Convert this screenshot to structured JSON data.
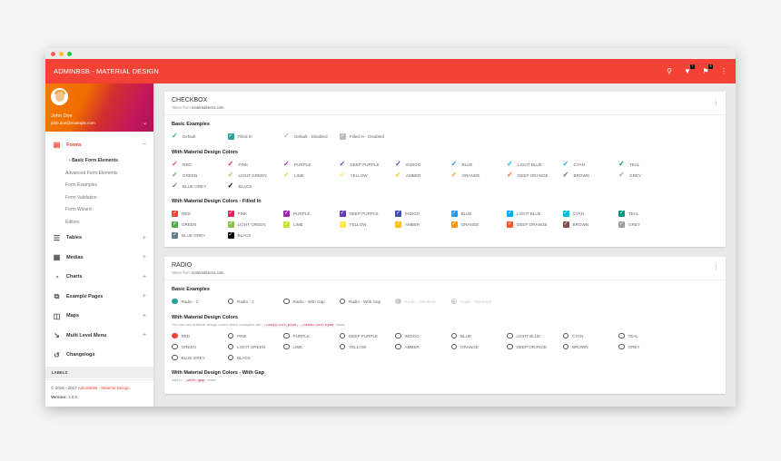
{
  "window": {
    "dots": [
      "#ff5f56",
      "#ffbd2e",
      "#27c93f"
    ]
  },
  "topbar": {
    "title": "ADMINBSB - MATERIAL DESIGN",
    "notif_badge": "7",
    "flag_badge": "9"
  },
  "user": {
    "name": "John Doe",
    "email": "john.doe@example.com"
  },
  "sidebar": {
    "forms": {
      "label": "Forms",
      "toggle": "−"
    },
    "sub_items": [
      {
        "label": "Basic Form Elements",
        "active": true
      },
      {
        "label": "Advanced Form Elements"
      },
      {
        "label": "Form Examples"
      },
      {
        "label": "Form Validation"
      },
      {
        "label": "Form Wizard"
      },
      {
        "label": "Editors"
      }
    ],
    "items": [
      {
        "label": "Tables",
        "toggle": "+"
      },
      {
        "label": "Medias",
        "toggle": "+"
      },
      {
        "label": "Charts",
        "toggle": "+"
      },
      {
        "label": "Example Pages",
        "toggle": "+"
      },
      {
        "label": "Maps",
        "toggle": "+"
      },
      {
        "label": "Multi Level Menu",
        "toggle": "+"
      },
      {
        "label": "Changelogs",
        "toggle": ""
      }
    ],
    "labels_header": "LABELS",
    "footer": {
      "copy": "© 2016 - 2017 ",
      "brand": "AdminBSB - Material Design.",
      "version_label": "Version: ",
      "version": "1.0.5"
    }
  },
  "checkbox_card": {
    "title": "CHECKBOX",
    "subtitle_prefix": "Taken from ",
    "subtitle_source": "materializecss.com",
    "basic_title": "Basic Examples",
    "basic": [
      "Default",
      "Filled In",
      "Default - Disabled",
      "Filled In - Disabled"
    ],
    "colors_title": "With Material Design Colors",
    "filled_title": "With Material Design Colors - Filled In"
  },
  "radio_card": {
    "title": "RADIO",
    "subtitle_prefix": "Taken from ",
    "subtitle_source": "materializecss.com",
    "basic_title": "Basic Examples",
    "basic": [
      "Radio - 1",
      "Radio - 2",
      "Radio - With Gap",
      "Radio - With Gap",
      "Radio - Disabled",
      "Radio - Disabled"
    ],
    "colors_title": "With Material Design Colors",
    "colors_note_prefix": "You can use material design colors which examples are ",
    "colors_note_code": ".radio-col-pink, .radio-col-cyan",
    "colors_note_suffix": " class",
    "gap_title": "With Material Design Colors - With Gap",
    "gap_note_prefix": "Add to ",
    "gap_note_code": ".with-gap",
    "gap_note_suffix": " class"
  },
  "colors": [
    {
      "name": "RED",
      "hex": "#f44336"
    },
    {
      "name": "PINK",
      "hex": "#e91e63"
    },
    {
      "name": "PURPLE",
      "hex": "#9c27b0"
    },
    {
      "name": "DEEP PURPLE",
      "hex": "#673ab7"
    },
    {
      "name": "INDIGO",
      "hex": "#3f51b5"
    },
    {
      "name": "BLUE",
      "hex": "#2196f3"
    },
    {
      "name": "LIGHT BLUE",
      "hex": "#03a9f4"
    },
    {
      "name": "CYAN",
      "hex": "#00bcd4"
    },
    {
      "name": "TEAL",
      "hex": "#009688"
    },
    {
      "name": "GREEN",
      "hex": "#4caf50"
    },
    {
      "name": "LIGHT GREEN",
      "hex": "#8bc34a"
    },
    {
      "name": "LIME",
      "hex": "#cddc39"
    },
    {
      "name": "YELLOW",
      "hex": "#ffeb3b"
    },
    {
      "name": "AMBER",
      "hex": "#ffc107"
    },
    {
      "name": "ORANGE",
      "hex": "#ff9800"
    },
    {
      "name": "DEEP ORANGE",
      "hex": "#ff5722"
    },
    {
      "name": "BROWN",
      "hex": "#795548"
    },
    {
      "name": "GREY",
      "hex": "#9e9e9e"
    },
    {
      "name": "BLUE GREY",
      "hex": "#607d8b"
    },
    {
      "name": "BLACK",
      "hex": "#000000"
    }
  ],
  "accent": "#f44336",
  "teal": "#26a69a"
}
